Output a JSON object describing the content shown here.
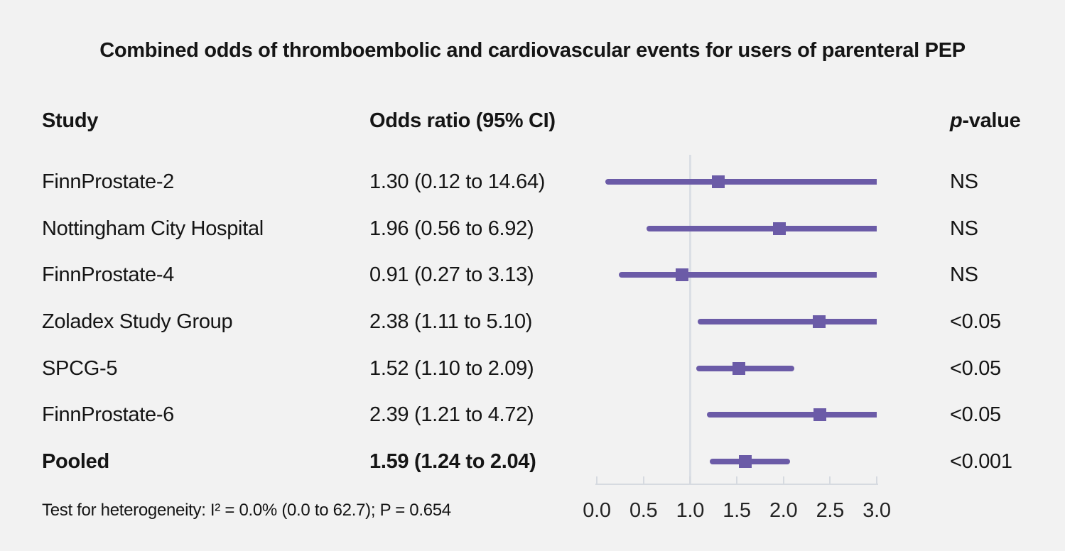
{
  "chart_data": {
    "type": "forest",
    "title": "Combined odds of thromboembolic and cardiovascular events for users of parenteral PEP",
    "columns": {
      "study": "Study",
      "odds_ratio": "Odds ratio (95% CI)",
      "p_italic": "p",
      "p_rest": "-value"
    },
    "rows": [
      {
        "study": "FinnProstate-2",
        "or_text": "1.30 (0.12 to 14.64)",
        "est": 1.3,
        "lo": 0.12,
        "hi": 14.64,
        "p": "NS",
        "bold": false
      },
      {
        "study": "Nottingham City Hospital",
        "or_text": "1.96 (0.56 to 6.92)",
        "est": 1.96,
        "lo": 0.56,
        "hi": 6.92,
        "p": "NS",
        "bold": false
      },
      {
        "study": "FinnProstate-4",
        "or_text": "0.91 (0.27 to 3.13)",
        "est": 0.91,
        "lo": 0.27,
        "hi": 3.13,
        "p": "NS",
        "bold": false
      },
      {
        "study": "Zoladex Study Group",
        "or_text": "2.38 (1.11 to 5.10)",
        "est": 2.38,
        "lo": 1.11,
        "hi": 5.1,
        "p": "<0.05",
        "bold": false
      },
      {
        "study": "SPCG-5",
        "or_text": "1.52 (1.10 to 2.09)",
        "est": 1.52,
        "lo": 1.1,
        "hi": 2.09,
        "p": "<0.05",
        "bold": false
      },
      {
        "study": "FinnProstate-6",
        "or_text": "2.39 (1.21 to 4.72)",
        "est": 2.39,
        "lo": 1.21,
        "hi": 4.72,
        "p": "<0.05",
        "bold": false
      },
      {
        "study": "Pooled",
        "or_text": "1.59 (1.24 to 2.04)",
        "est": 1.59,
        "lo": 1.24,
        "hi": 2.04,
        "p": "<0.001",
        "bold": true
      }
    ],
    "axis": {
      "tick_labels": [
        "0.0",
        "0.5",
        "1.0",
        "1.5",
        "2.0",
        "2.5",
        "3.0"
      ],
      "tick_values": [
        0,
        0.5,
        1,
        1.5,
        2,
        2.5,
        3
      ],
      "range": [
        0,
        3
      ],
      "reference_value": 1.0
    },
    "footer": "Test for heterogeneity: I² = 0.0% (0.0 to 62.7); P = 0.654",
    "colors": {
      "accent_purple": "#6b5ba7",
      "reference_line": "#dbdfe5",
      "axis_line": "#d6dae0",
      "background": "#f2f2f2",
      "text": "#151515"
    }
  }
}
